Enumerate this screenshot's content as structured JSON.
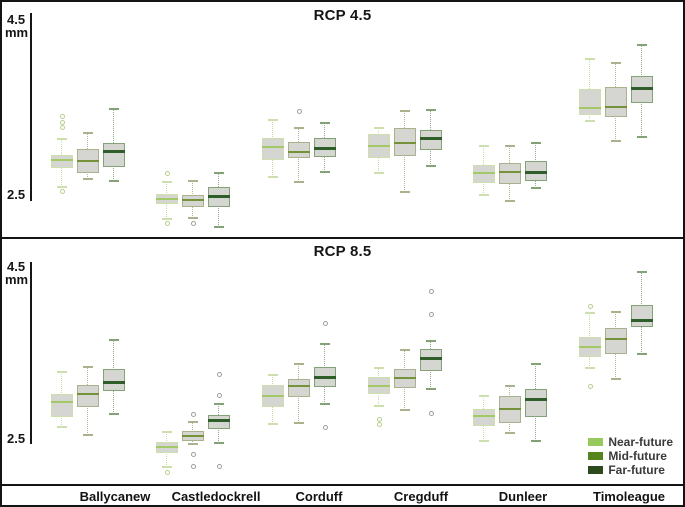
{
  "figure_colors": {
    "border": "#141414",
    "background": "#ffffff",
    "box_fill": "#d5d5d2"
  },
  "y_axis": {
    "max_label": "4.5",
    "unit": "mm",
    "min_label": "2.5",
    "min": 2.5,
    "max": 4.5
  },
  "sites": [
    "Ballycanew",
    "Castledockrell",
    "Corduff",
    "Cregduff",
    "Dunleer",
    "Timoleague"
  ],
  "legend": {
    "position": "bottom-right-of-lower-panel",
    "items": [
      {
        "label": "Near-future",
        "color": "#97c95c"
      },
      {
        "label": "Mid-future",
        "color": "#55851c"
      },
      {
        "label": "Far-future",
        "color": "#2c4a1b"
      }
    ]
  },
  "series_styles": {
    "Near-future": {
      "border": "#cedfae",
      "median": "#a3c868",
      "whisker": "#c9dba6",
      "dot": "#b7cf8e",
      "median_height": 2
    },
    "Mid-future": {
      "border": "#a9b18d",
      "median": "#75923b",
      "whisker": "#b0b896",
      "dot": "#9aa196",
      "median_height": 2
    },
    "Far-future": {
      "border": "#83a277",
      "median": "#2f5e2a",
      "whisker": "#8fa886",
      "dot": "#98a098",
      "median_height": 3
    }
  },
  "chart_data": [
    {
      "type": "boxplot",
      "title": "RCP 4.5",
      "ylabel": "mm",
      "ylim": [
        2.5,
        4.5
      ],
      "grid": false,
      "categories": [
        "Ballycanew",
        "Castledockrell",
        "Corduff",
        "Cregduff",
        "Dunleer",
        "Timoleague"
      ],
      "series": [
        {
          "name": "Near-future",
          "boxes": [
            {
              "low": 2.61,
              "q1": 2.83,
              "median": 2.92,
              "q3": 2.98,
              "high": 3.17,
              "outliers": [
                3.43,
                3.37,
                3.31,
                2.55
              ]
            },
            {
              "low": 2.23,
              "q1": 2.41,
              "median": 2.46,
              "q3": 2.52,
              "high": 2.66,
              "outliers": [
                2.77,
                2.18
              ]
            },
            {
              "low": 2.72,
              "q1": 2.92,
              "median": 3.08,
              "q3": 3.18,
              "high": 3.39,
              "outliers": []
            },
            {
              "low": 2.77,
              "q1": 2.95,
              "median": 3.09,
              "q3": 3.23,
              "high": 3.3,
              "outliers": []
            },
            {
              "low": 2.51,
              "q1": 2.65,
              "median": 2.77,
              "q3": 2.86,
              "high": 3.09,
              "outliers": []
            },
            {
              "low": 3.38,
              "q1": 3.45,
              "median": 3.54,
              "q3": 3.76,
              "high": 4.11,
              "outliers": []
            }
          ]
        },
        {
          "name": "Mid-future",
          "boxes": [
            {
              "low": 2.7,
              "q1": 2.77,
              "median": 2.91,
              "q3": 3.05,
              "high": 3.24,
              "outliers": []
            },
            {
              "low": 2.24,
              "q1": 2.37,
              "median": 2.45,
              "q3": 2.51,
              "high": 2.68,
              "outliers": [
                2.18
              ]
            },
            {
              "low": 2.66,
              "q1": 2.95,
              "median": 3.02,
              "q3": 3.14,
              "high": 3.3,
              "outliers": [
                3.5
              ]
            },
            {
              "low": 2.55,
              "q1": 2.97,
              "median": 3.12,
              "q3": 3.3,
              "high": 3.5,
              "outliers": []
            },
            {
              "low": 2.44,
              "q1": 2.64,
              "median": 2.78,
              "q3": 2.89,
              "high": 3.09,
              "outliers": []
            },
            {
              "low": 3.15,
              "q1": 3.43,
              "median": 3.55,
              "q3": 3.78,
              "high": 4.06,
              "outliers": []
            }
          ]
        },
        {
          "name": "Far-future",
          "boxes": [
            {
              "low": 2.68,
              "q1": 2.84,
              "median": 3.02,
              "q3": 3.12,
              "high": 3.52,
              "outliers": []
            },
            {
              "low": 2.14,
              "q1": 2.37,
              "median": 2.5,
              "q3": 2.61,
              "high": 2.77,
              "outliers": []
            },
            {
              "low": 2.78,
              "q1": 2.96,
              "median": 3.06,
              "q3": 3.18,
              "high": 3.36,
              "outliers": []
            },
            {
              "low": 2.85,
              "q1": 3.04,
              "median": 3.18,
              "q3": 3.28,
              "high": 3.51,
              "outliers": []
            },
            {
              "low": 2.59,
              "q1": 2.68,
              "median": 2.78,
              "q3": 2.91,
              "high": 3.12,
              "outliers": []
            },
            {
              "low": 3.19,
              "q1": 3.59,
              "median": 3.77,
              "q3": 3.91,
              "high": 4.28,
              "outliers": []
            }
          ]
        }
      ]
    },
    {
      "type": "boxplot",
      "title": "RCP 8.5",
      "ylabel": "mm",
      "ylim": [
        2.5,
        4.5
      ],
      "grid": false,
      "categories": [
        "Ballycanew",
        "Castledockrell",
        "Corduff",
        "Cregduff",
        "Dunleer",
        "Timoleague"
      ],
      "series": [
        {
          "name": "Near-future",
          "boxes": [
            {
              "low": 2.65,
              "q1": 2.77,
              "median": 2.94,
              "q3": 3.03,
              "high": 3.29,
              "outliers": []
            },
            {
              "low": 2.19,
              "q1": 2.35,
              "median": 2.42,
              "q3": 2.48,
              "high": 2.59,
              "outliers": [
                2.12
              ]
            },
            {
              "low": 2.68,
              "q1": 2.88,
              "median": 3.01,
              "q3": 3.14,
              "high": 3.25,
              "outliers": []
            },
            {
              "low": 2.89,
              "q1": 3.03,
              "median": 3.12,
              "q3": 3.23,
              "high": 3.33,
              "outliers": [
                2.74,
                2.68
              ]
            },
            {
              "low": 2.49,
              "q1": 2.66,
              "median": 2.78,
              "q3": 2.86,
              "high": 3.01,
              "outliers": []
            },
            {
              "low": 3.33,
              "q1": 3.46,
              "median": 3.58,
              "q3": 3.69,
              "high": 3.97,
              "outliers": [
                4.04,
                3.12
              ]
            }
          ]
        },
        {
          "name": "Mid-future",
          "boxes": [
            {
              "low": 2.56,
              "q1": 2.88,
              "median": 3.03,
              "q3": 3.14,
              "high": 3.34,
              "outliers": []
            },
            {
              "low": 2.45,
              "q1": 2.49,
              "median": 2.55,
              "q3": 2.6,
              "high": 2.71,
              "outliers": [
                2.8,
                2.33,
                2.19
              ]
            },
            {
              "low": 2.7,
              "q1": 3.0,
              "median": 3.12,
              "q3": 3.21,
              "high": 3.38,
              "outliers": []
            },
            {
              "low": 2.85,
              "q1": 3.1,
              "median": 3.22,
              "q3": 3.32,
              "high": 3.54,
              "outliers": []
            },
            {
              "low": 2.58,
              "q1": 2.7,
              "median": 2.86,
              "q3": 3.01,
              "high": 3.12,
              "outliers": []
            },
            {
              "low": 3.21,
              "q1": 3.49,
              "median": 3.67,
              "q3": 3.79,
              "high": 3.98,
              "outliers": []
            }
          ]
        },
        {
          "name": "Far-future",
          "boxes": [
            {
              "low": 2.8,
              "q1": 3.07,
              "median": 3.16,
              "q3": 3.32,
              "high": 3.66,
              "outliers": []
            },
            {
              "low": 2.47,
              "q1": 2.63,
              "median": 2.73,
              "q3": 2.79,
              "high": 2.92,
              "outliers": [
                3.26,
                3.02,
                2.19
              ]
            },
            {
              "low": 2.92,
              "q1": 3.11,
              "median": 3.22,
              "q3": 3.34,
              "high": 3.61,
              "outliers": [
                3.85,
                2.65
              ]
            },
            {
              "low": 3.09,
              "q1": 3.3,
              "median": 3.44,
              "q3": 3.55,
              "high": 3.64,
              "outliers": [
                4.22,
                3.95,
                2.81
              ]
            },
            {
              "low": 2.49,
              "q1": 2.77,
              "median": 2.97,
              "q3": 3.09,
              "high": 3.38,
              "outliers": []
            },
            {
              "low": 3.49,
              "q1": 3.81,
              "median": 3.88,
              "q3": 4.06,
              "high": 4.44,
              "outliers": []
            }
          ]
        }
      ]
    }
  ]
}
